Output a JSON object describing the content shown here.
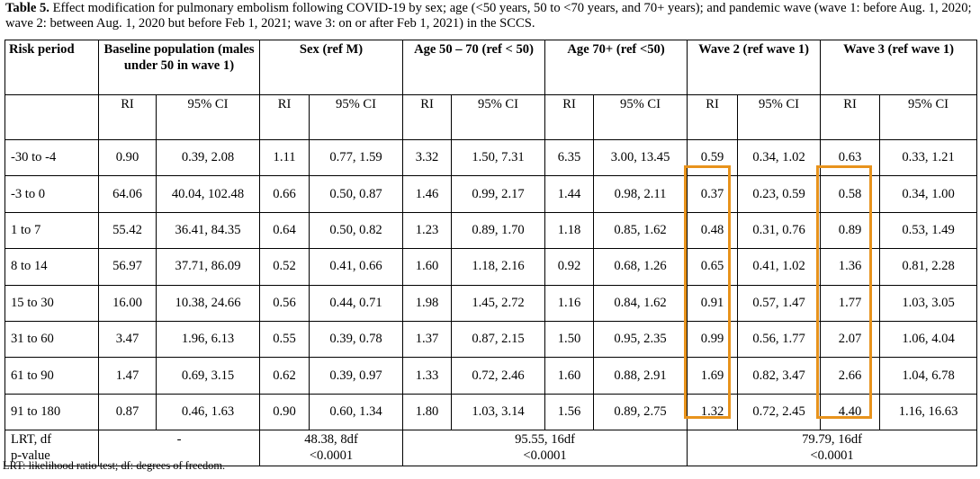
{
  "caption": {
    "label": "Table 5.",
    "text": " Effect modification for pulmonary embolism following COVID-19 by sex; age (<50 years, 50 to <70 years, and 70+ years); and pandemic wave (wave 1: before Aug. 1, 2020; wave 2: between Aug. 1, 2020 but before Feb 1, 2021; wave 3: on or after Feb 1, 2021) in the SCCS."
  },
  "header": {
    "risk_period": "Risk period",
    "groups": [
      "Baseline population (males under 50 in wave 1)",
      "Sex (ref M)",
      "Age 50 – 70 (ref < 50)",
      "Age 70+ (ref <50)",
      "Wave 2 (ref wave 1)",
      "Wave 3 (ref wave 1)"
    ],
    "ri": "RI",
    "ci": "95% CI"
  },
  "rows": [
    {
      "period": "-30 to -4",
      "v": [
        "0.90",
        "0.39, 2.08",
        "1.11",
        "0.77, 1.59",
        "3.32",
        "1.50, 7.31",
        "6.35",
        "3.00, 13.45",
        "0.59",
        "0.34, 1.02",
        "0.63",
        "0.33, 1.21"
      ]
    },
    {
      "period": "-3 to 0",
      "v": [
        "64.06",
        "40.04, 102.48",
        "0.66",
        "0.50, 0.87",
        "1.46",
        "0.99, 2.17",
        "1.44",
        "0.98, 2.11",
        "0.37",
        "0.23, 0.59",
        "0.58",
        "0.34, 1.00"
      ]
    },
    {
      "period": "1 to 7",
      "v": [
        "55.42",
        "36.41, 84.35",
        "0.64",
        "0.50, 0.82",
        "1.23",
        "0.89, 1.70",
        "1.18",
        "0.85, 1.62",
        "0.48",
        "0.31, 0.76",
        "0.89",
        "0.53, 1.49"
      ]
    },
    {
      "period": "8 to 14",
      "v": [
        "56.97",
        "37.71, 86.09",
        "0.52",
        "0.41, 0.66",
        "1.60",
        "1.18, 2.16",
        "0.92",
        "0.68, 1.26",
        "0.65",
        "0.41, 1.02",
        "1.36",
        "0.81, 2.28"
      ]
    },
    {
      "period": "15 to 30",
      "v": [
        "16.00",
        "10.38, 24.66",
        "0.56",
        "0.44, 0.71",
        "1.98",
        "1.45, 2.72",
        "1.16",
        "0.84, 1.62",
        "0.91",
        "0.57, 1.47",
        "1.77",
        "1.03, 3.05"
      ]
    },
    {
      "period": "31 to 60",
      "v": [
        "3.47",
        "1.96, 6.13",
        "0.55",
        "0.39, 0.78",
        "1.37",
        "0.87, 2.15",
        "1.50",
        "0.95, 2.35",
        "0.99",
        "0.56, 1.77",
        "2.07",
        "1.06, 4.04"
      ]
    },
    {
      "period": "61 to 90",
      "v": [
        "1.47",
        "0.69, 3.15",
        "0.62",
        "0.39, 0.97",
        "1.33",
        "0.72, 2.46",
        "1.60",
        "0.88, 2.91",
        "1.69",
        "0.82, 3.47",
        "2.66",
        "1.04, 6.78"
      ]
    },
    {
      "period": "91 to 180",
      "v": [
        "0.87",
        "0.46, 1.63",
        "0.90",
        "0.60, 1.34",
        "1.80",
        "1.03, 3.14",
        "1.56",
        "0.89, 2.75",
        "1.32",
        "0.72, 2.45",
        "4.40",
        "1.16, 16.63"
      ]
    }
  ],
  "lrt": {
    "label_line1": "LRT, df",
    "label_line2": "p-value",
    "baseline": "-",
    "sex_line1": "48.38, 8df",
    "sex_line2": "<0.0001",
    "age_line1": "95.55, 16df",
    "age_line2": "<0.0001",
    "wave_line1": "79.79, 16df",
    "wave_line2": "<0.0001"
  },
  "footnote": "LRT: likelihood ratio test; df: degrees of freedom.",
  "highlight_color": "#E8931C"
}
